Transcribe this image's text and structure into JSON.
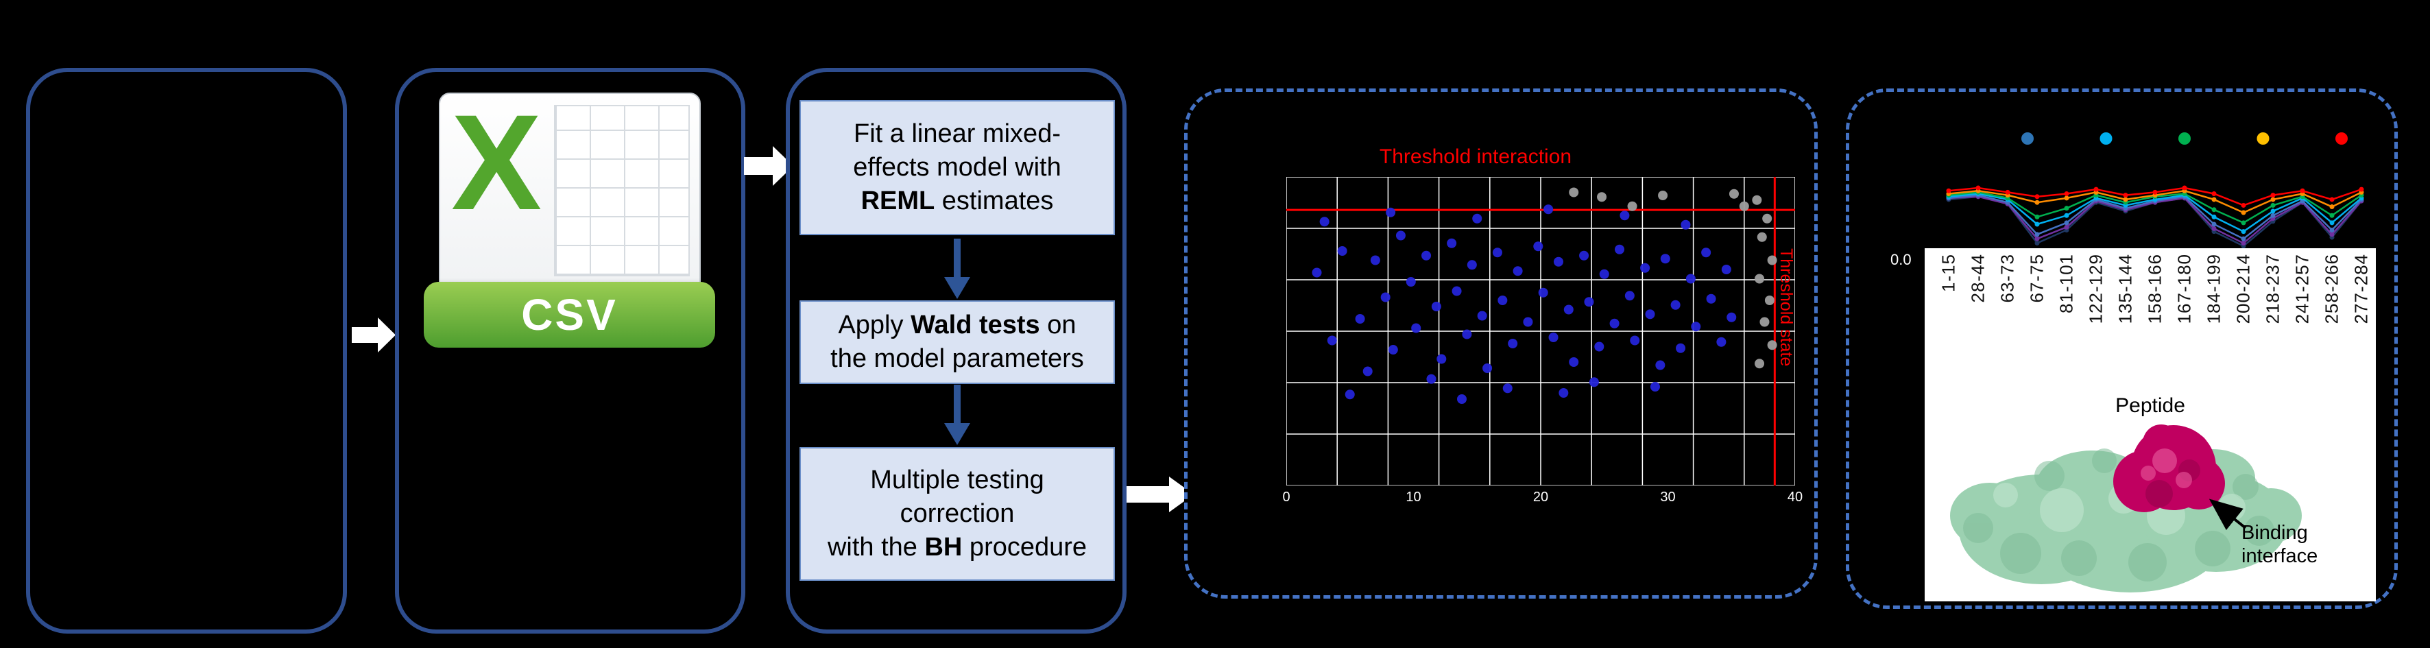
{
  "colors": {
    "solid_panel_border": "#2E4D8E",
    "dashed_panel_border": "#4472C4",
    "step_box_fill": "#DAE3F3",
    "threshold_red": "#FF0000",
    "csv_green": "#53A62D",
    "protein_surface_green": "#9CD1B1",
    "binding_site_magenta": "#C00060"
  },
  "workflow": {
    "csv_icon": {
      "logo_letter": "X",
      "format_label": "CSV"
    },
    "model_steps": [
      {
        "segments": [
          {
            "t": "Fit a linear mixed-"
          },
          {
            "t": "effects model with",
            "br": true
          },
          {
            "t": "REML",
            "b": true,
            "br": true
          },
          {
            "t": " estimates"
          }
        ]
      },
      {
        "segments": [
          {
            "t": "Apply "
          },
          {
            "t": "Wald tests",
            "b": true
          },
          {
            "t": " on"
          },
          {
            "t": "the model parameters",
            "br": true
          }
        ]
      },
      {
        "segments": [
          {
            "t": "Multiple testing"
          },
          {
            "t": "correction",
            "br": true
          },
          {
            "t": "with the ",
            "br": true
          },
          {
            "t": "BH",
            "b": true
          },
          {
            "t": " procedure"
          }
        ]
      }
    ]
  },
  "protein": {
    "annotation": "Binding\ninterface"
  },
  "chart_data": [
    {
      "type": "scatter",
      "title": "Threshold interaction",
      "title_color": "#FF0000",
      "v_label": "Threshold state",
      "x_ticks": [
        "0",
        "10",
        "20",
        "30",
        "40"
      ],
      "grid": {
        "cols": 10,
        "rows": 6,
        "color": "#FFFFFF"
      },
      "threshold_h_frac": 0.107,
      "threshold_v_frac": 0.96,
      "threshold_color": "#FF0000",
      "series": [
        {
          "name": "significant-peptides",
          "color": "#2424D8",
          "points": [
            [
              0.06,
              0.31
            ],
            [
              0.09,
              0.53
            ],
            [
              0.11,
              0.24
            ],
            [
              0.145,
              0.46
            ],
            [
              0.16,
              0.63
            ],
            [
              0.175,
              0.27
            ],
            [
              0.195,
              0.39
            ],
            [
              0.21,
              0.56
            ],
            [
              0.225,
              0.19
            ],
            [
              0.245,
              0.34
            ],
            [
              0.255,
              0.49
            ],
            [
              0.275,
              0.255
            ],
            [
              0.295,
              0.42
            ],
            [
              0.305,
              0.59
            ],
            [
              0.325,
              0.215
            ],
            [
              0.335,
              0.37
            ],
            [
              0.355,
              0.51
            ],
            [
              0.365,
              0.285
            ],
            [
              0.385,
              0.45
            ],
            [
              0.395,
              0.62
            ],
            [
              0.415,
              0.245
            ],
            [
              0.425,
              0.4
            ],
            [
              0.445,
              0.54
            ],
            [
              0.455,
              0.305
            ],
            [
              0.475,
              0.47
            ],
            [
              0.495,
              0.225
            ],
            [
              0.505,
              0.375
            ],
            [
              0.525,
              0.52
            ],
            [
              0.535,
              0.275
            ],
            [
              0.555,
              0.43
            ],
            [
              0.565,
              0.6
            ],
            [
              0.585,
              0.255
            ],
            [
              0.595,
              0.405
            ],
            [
              0.615,
              0.55
            ],
            [
              0.625,
              0.315
            ],
            [
              0.645,
              0.475
            ],
            [
              0.655,
              0.235
            ],
            [
              0.675,
              0.385
            ],
            [
              0.685,
              0.53
            ],
            [
              0.705,
              0.295
            ],
            [
              0.715,
              0.445
            ],
            [
              0.735,
              0.61
            ],
            [
              0.745,
              0.265
            ],
            [
              0.765,
              0.415
            ],
            [
              0.775,
              0.555
            ],
            [
              0.795,
              0.33
            ],
            [
              0.805,
              0.485
            ],
            [
              0.825,
              0.245
            ],
            [
              0.835,
              0.395
            ],
            [
              0.855,
              0.535
            ],
            [
              0.865,
              0.3
            ],
            [
              0.875,
              0.455
            ],
            [
              0.125,
              0.705
            ],
            [
              0.345,
              0.72
            ],
            [
              0.545,
              0.7
            ],
            [
              0.075,
              0.145
            ],
            [
              0.205,
              0.115
            ],
            [
              0.375,
              0.135
            ],
            [
              0.515,
              0.105
            ],
            [
              0.665,
              0.125
            ],
            [
              0.785,
              0.155
            ],
            [
              0.435,
              0.685
            ],
            [
              0.285,
              0.655
            ],
            [
              0.605,
              0.665
            ],
            [
              0.725,
              0.68
            ]
          ]
        },
        {
          "name": "non-significant-peptides",
          "color": "#9E9E9E",
          "points": [
            [
              0.925,
              0.075
            ],
            [
              0.945,
              0.135
            ],
            [
              0.935,
              0.195
            ],
            [
              0.955,
              0.27
            ],
            [
              0.93,
              0.33
            ],
            [
              0.95,
              0.4
            ],
            [
              0.94,
              0.47
            ],
            [
              0.955,
              0.545
            ],
            [
              0.93,
              0.605
            ],
            [
              0.9,
              0.095
            ],
            [
              0.88,
              0.055
            ],
            [
              0.62,
              0.065
            ],
            [
              0.68,
              0.095
            ],
            [
              0.74,
              0.06
            ],
            [
              0.565,
              0.05
            ]
          ]
        }
      ]
    },
    {
      "type": "line",
      "categories": [
        "1-15",
        "28-44",
        "63-73",
        "67-75",
        "81-101",
        "122-129",
        "135-144",
        "158-166",
        "167-180",
        "184-199",
        "200-214",
        "218-237",
        "241-257",
        "258-266",
        "277-284"
      ],
      "xlabel": "Peptide",
      "ylim": [
        0,
        1
      ],
      "y_tick": "0.0",
      "legend_dot_colors": [
        "#2E75B6",
        "#00B0F0",
        "#00B050",
        "#FFC000",
        "#FF0000"
      ],
      "series": [
        {
          "name": "line-navy",
          "color": "#1F3864",
          "values": [
            0.42,
            0.44,
            0.39,
            0.12,
            0.21,
            0.4,
            0.34,
            0.4,
            0.43,
            0.2,
            0.1,
            0.27,
            0.4,
            0.16,
            0.41
          ]
        },
        {
          "name": "line-purple",
          "color": "#7030A0",
          "values": [
            0.43,
            0.44,
            0.39,
            0.15,
            0.23,
            0.41,
            0.35,
            0.4,
            0.43,
            0.22,
            0.12,
            0.29,
            0.4,
            0.18,
            0.41
          ]
        },
        {
          "name": "line-blue",
          "color": "#4472C4",
          "values": [
            0.43,
            0.45,
            0.4,
            0.18,
            0.26,
            0.42,
            0.36,
            0.41,
            0.44,
            0.25,
            0.15,
            0.31,
            0.41,
            0.21,
            0.42
          ]
        },
        {
          "name": "line-cyan",
          "color": "#00B0F0",
          "values": [
            0.44,
            0.46,
            0.42,
            0.25,
            0.31,
            0.43,
            0.38,
            0.42,
            0.45,
            0.3,
            0.2,
            0.34,
            0.43,
            0.26,
            0.43
          ]
        },
        {
          "name": "line-green",
          "color": "#00B050",
          "values": [
            0.45,
            0.47,
            0.43,
            0.3,
            0.36,
            0.45,
            0.4,
            0.44,
            0.46,
            0.35,
            0.26,
            0.38,
            0.44,
            0.31,
            0.45
          ]
        },
        {
          "name": "line-orange",
          "color": "#FF8C00",
          "values": [
            0.46,
            0.48,
            0.45,
            0.4,
            0.43,
            0.47,
            0.42,
            0.45,
            0.48,
            0.42,
            0.33,
            0.42,
            0.46,
            0.37,
            0.47
          ]
        },
        {
          "name": "line-red",
          "color": "#FF0000",
          "values": [
            0.48,
            0.5,
            0.47,
            0.44,
            0.46,
            0.49,
            0.45,
            0.47,
            0.5,
            0.46,
            0.38,
            0.45,
            0.48,
            0.42,
            0.49
          ]
        }
      ]
    }
  ]
}
